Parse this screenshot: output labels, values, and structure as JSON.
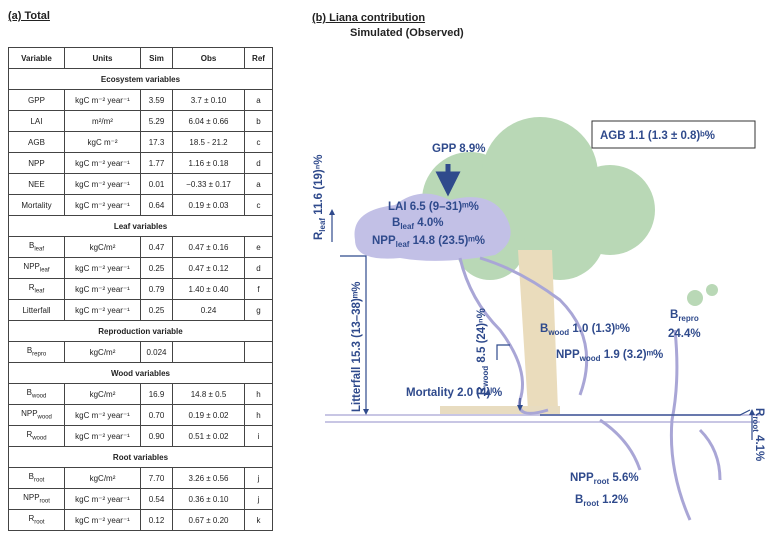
{
  "panel_a": {
    "title": "(a) Total",
    "table": {
      "header": [
        "Variable",
        "Units",
        "Sim",
        "Obs",
        "Ref"
      ],
      "sections": [
        {
          "title": "Ecosystem variables",
          "rows": [
            [
              "GPP",
              "kgC m⁻² year⁻¹",
              "3.59",
              "3.7 ± 0.10",
              "a"
            ],
            [
              "LAI",
              "m²/m²",
              "5.29",
              "6.04 ± 0.66",
              "b"
            ],
            [
              "AGB",
              "kgC m⁻²",
              "17.3",
              "18.5 - 21.2",
              "c"
            ],
            [
              "NPP",
              "kgC m⁻² year⁻¹",
              "1.77",
              "1.16 ± 0.18",
              "d"
            ],
            [
              "NEE",
              "kgC m⁻² year⁻¹",
              "0.01",
              "−0.33 ± 0.17",
              "a"
            ],
            [
              "Mortality",
              "kgC m⁻² year⁻¹",
              "0.64",
              "0.19 ± 0.03",
              "c"
            ]
          ]
        },
        {
          "title": "Leaf variables",
          "rows": [
            [
              {
                "base": "B",
                "sub": "leaf"
              },
              "kgC/m²",
              "0.47",
              "0.47 ± 0.16",
              "e"
            ],
            [
              {
                "base": "NPP",
                "sub": "leaf"
              },
              "kgC m⁻² year⁻¹",
              "0.25",
              "0.47 ± 0.12",
              "d"
            ],
            [
              {
                "base": "R",
                "sub": "leaf"
              },
              "kgC m⁻² year⁻¹",
              "0.79",
              "1.40 ± 0.40",
              "f"
            ],
            [
              "Litterfall",
              "kgC m⁻² year⁻¹",
              "0.25",
              "0.24",
              "g"
            ]
          ]
        },
        {
          "title": "Reproduction variable",
          "rows": [
            [
              {
                "base": "B",
                "sub": "repro"
              },
              "kgC/m²",
              "0.024"
            ]
          ]
        },
        {
          "title": "Wood variables",
          "rows": [
            [
              {
                "base": "B",
                "sub": "wood"
              },
              "kgC/m²",
              "16.9",
              "14.8 ± 0.5",
              "h"
            ],
            [
              {
                "base": "NPP",
                "sub": "wood"
              },
              "kgC m⁻² year⁻¹",
              "0.70",
              "0.19 ± 0.02",
              "h"
            ],
            [
              {
                "base": "R",
                "sub": "wood"
              },
              "kgC m⁻² year⁻¹",
              "0.90",
              "0.51 ± 0.02",
              "i"
            ]
          ]
        },
        {
          "title": "Root variables",
          "rows": [
            [
              {
                "base": "B",
                "sub": "root"
              },
              "kgC/m²",
              "7.70",
              "3.26 ± 0.56",
              "j"
            ],
            [
              {
                "base": "NPP",
                "sub": "root"
              },
              "kgC m⁻² year⁻¹",
              "0.54",
              "0.36 ± 0.10",
              "j"
            ],
            [
              {
                "base": "R",
                "sub": "root"
              },
              "kgC m⁻² year⁻¹",
              "0.12",
              "0.67 ± 0.20",
              "k"
            ]
          ]
        }
      ]
    }
  },
  "panel_b": {
    "title": "(b) Liana contribution",
    "subtitle": "Simulated (Observed)",
    "labels": [
      {
        "pre": "GPP 8.9%"
      },
      {
        "pre": "AGB 1.1 (1.3 ± 0.8)ᵇ%"
      },
      {
        "pre": "LAI 6.5 (9–31)ᵐ%"
      },
      {
        "pre": "B",
        "sub": "leaf",
        "post": " 4.0%"
      },
      {
        "pre": "NPP",
        "sub": "leaf",
        "post": " 14.8 (23.5)ᵐ%"
      },
      {
        "pre": "R",
        "sub": "leaf",
        "post": " 11.6 (19)ⁿ%"
      },
      {
        "pre": "Litterfall 15.3 (13–38)ᵐ%"
      },
      {
        "pre": "R",
        "sub": "wood",
        "post": " 8.5 (24)ⁿ%"
      },
      {
        "pre": "B",
        "sub": "wood",
        "post": " 1.0 (1.3)ᵇ%"
      },
      {
        "pre": "NPP",
        "sub": "wood",
        "post": " 1.9 (3.2)ᵐ%"
      },
      {
        "pre": "B",
        "sub": "repro"
      },
      {
        "pre": "24.4%"
      },
      {
        "pre": "Mortality 2.0 (4)ˡ%"
      },
      {
        "pre": "R",
        "sub": "root",
        "post": " 4.1%"
      },
      {
        "pre": "NPP",
        "sub": "root",
        "post": " 5.6%"
      },
      {
        "pre": "B",
        "sub": "root",
        "post": " 1.2%"
      }
    ]
  }
}
